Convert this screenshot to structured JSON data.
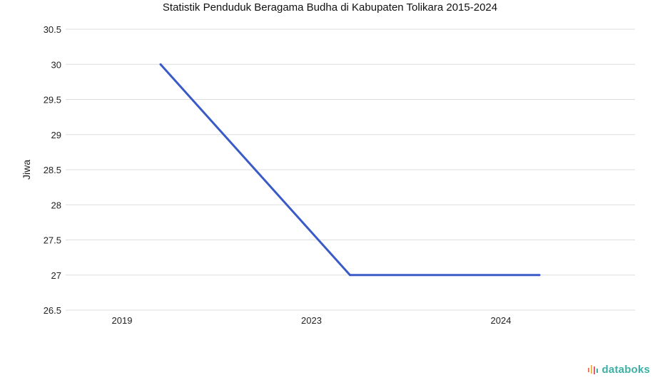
{
  "chart_data": {
    "type": "line",
    "title": "Statistik Penduduk Beragama Budha di Kabupaten Tolikara 2015-2024",
    "xlabel": "",
    "ylabel": "Jiwa",
    "categories": [
      "2019",
      "2023",
      "2024"
    ],
    "series": [
      {
        "values": [
          30,
          27,
          27
        ],
        "color": "#3a5bc7"
      }
    ],
    "ylim": [
      26.5,
      30.5
    ],
    "yticks": [
      "30.5",
      "30",
      "29.5",
      "29",
      "28.5",
      "28",
      "27.5",
      "27",
      "26.5"
    ],
    "grid": true,
    "legend": "none"
  },
  "brand": {
    "text": "databoks",
    "icon": "databoks-logo-icon",
    "color": "#3bb0a4"
  }
}
